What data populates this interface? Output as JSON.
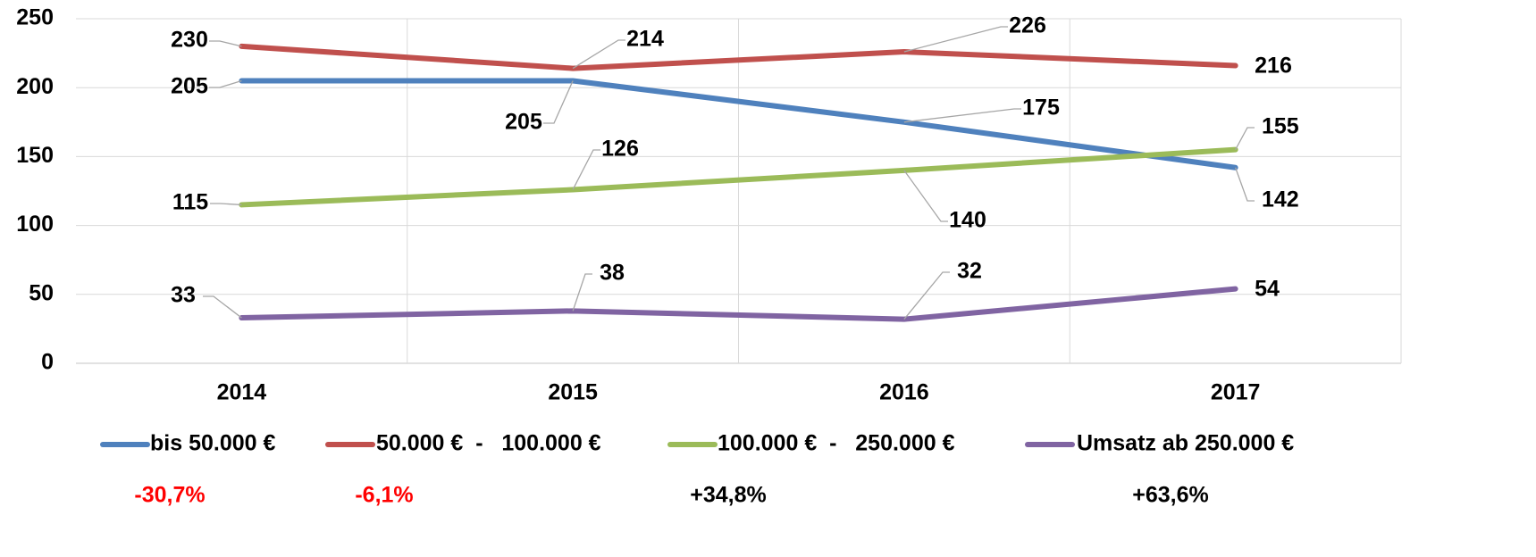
{
  "chart_data": {
    "type": "line",
    "categories": [
      "2014",
      "2015",
      "2016",
      "2017"
    ],
    "series": [
      {
        "name": "bis 50.000 €",
        "color": "#4f81bd",
        "values": [
          205,
          205,
          175,
          142
        ]
      },
      {
        "name": "50.000 €  -   100.000 €",
        "color": "#c0504d",
        "values": [
          230,
          214,
          226,
          216
        ]
      },
      {
        "name": "100.000 €  -   250.000 €",
        "color": "#9bbb59",
        "values": [
          115,
          126,
          140,
          155
        ]
      },
      {
        "name": "Umsatz ab 250.000 €",
        "color": "#8064a2",
        "values": [
          33,
          38,
          32,
          54
        ]
      }
    ],
    "ylim": [
      0,
      250
    ],
    "yticks": [
      0,
      50,
      100,
      150,
      200,
      250
    ],
    "grid": true,
    "legend": "bottom",
    "annotations": [
      {
        "text": "-30,7%",
        "color": "#ff0000"
      },
      {
        "text": "-6,1%",
        "color": "#ff0000"
      },
      {
        "text": "+34,8%",
        "color": "#000000"
      },
      {
        "text": "+63,6%",
        "color": "#000000"
      }
    ]
  }
}
